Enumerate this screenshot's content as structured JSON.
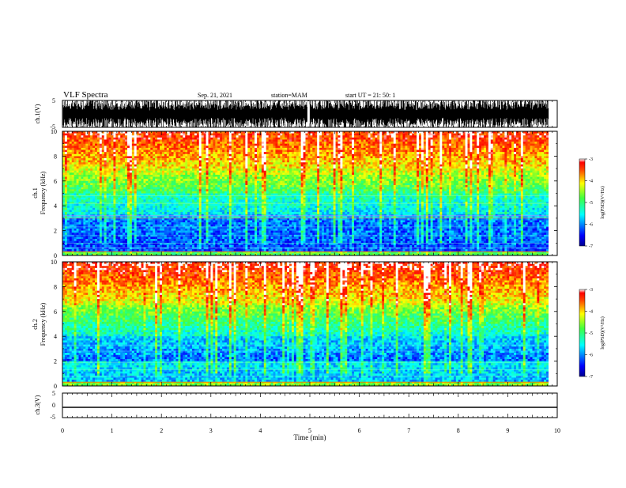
{
  "header": {
    "title": "VLF Spectra",
    "date": "Sep. 21, 2021",
    "station": "station=MAM",
    "start": "start  UT =  21: 50: 1"
  },
  "chart_data": [
    {
      "type": "line",
      "name": "ch1-waveform",
      "ylabel": "ch.1(V)",
      "ylim": [
        -5,
        5
      ],
      "yticks": [
        "5",
        "-5"
      ],
      "xlim": [
        0,
        10
      ]
    },
    {
      "type": "heatmap",
      "name": "ch1-spectrogram",
      "ylabel": "ch.1\nFrequency (kHz)",
      "ylabel_line1": "ch.1",
      "ylabel_line2": "Frequency  (kHz)",
      "ylim": [
        0,
        10
      ],
      "yticks": [
        "0",
        "2",
        "4",
        "6",
        "8",
        "10"
      ],
      "xlim": [
        0,
        10
      ],
      "colorbar": {
        "label": "log(PSD)(V²/Hz)",
        "range": [
          -7,
          -3
        ],
        "ticks": [
          "-3",
          "-4",
          "-5",
          "-6",
          "-7"
        ]
      }
    },
    {
      "type": "heatmap",
      "name": "ch2-spectrogram",
      "ylabel_line1": "ch.2",
      "ylabel_line2": "Frequency  (kHz)",
      "ylim": [
        0,
        10
      ],
      "yticks": [
        "0",
        "2",
        "4",
        "6",
        "8",
        "10"
      ],
      "xlim": [
        0,
        10
      ],
      "colorbar": {
        "label": "log(PSD)(V²/Hz)",
        "range": [
          -7,
          -3
        ],
        "ticks": [
          "-3",
          "-4",
          "-5",
          "-6",
          "-7"
        ]
      }
    },
    {
      "type": "line",
      "name": "ch3-waveform",
      "ylabel": "ch.3(V)",
      "ylim": [
        -5,
        5
      ],
      "yticks": [
        "5",
        "0",
        "-5"
      ],
      "constant_value": -0.8,
      "xlim": [
        0,
        10
      ],
      "xticks": [
        "0",
        "1",
        "2",
        "3",
        "4",
        "5",
        "6",
        "7",
        "8",
        "9",
        "10"
      ],
      "xlabel": "Time  (min)"
    }
  ]
}
